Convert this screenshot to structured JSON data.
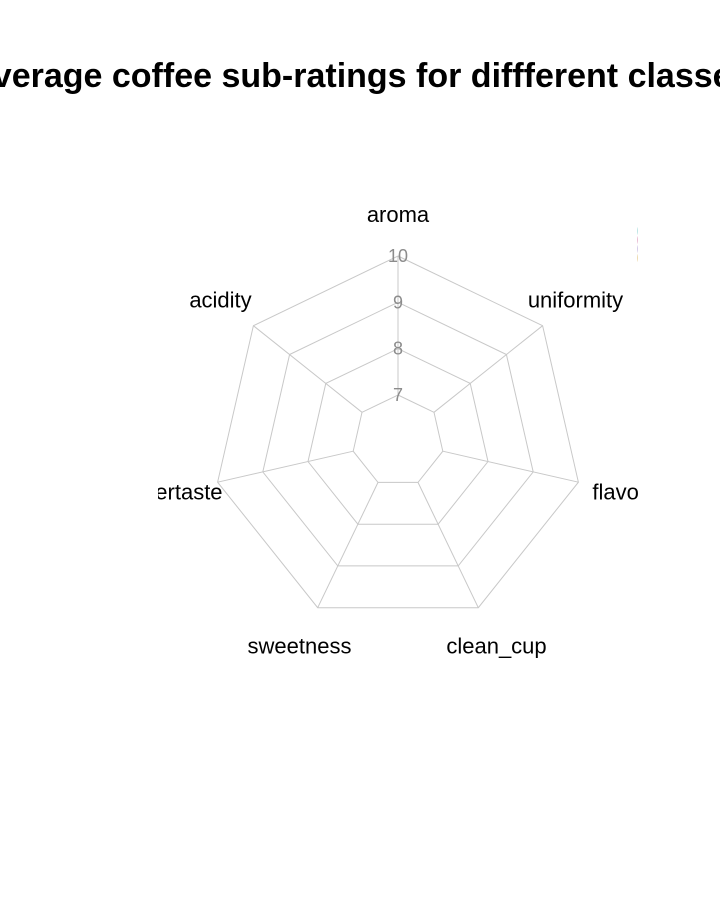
{
  "chart_data": {
    "type": "radar",
    "title": "Average coffee sub-ratings for diffferent classes",
    "axes": [
      "aroma",
      "uniformity",
      "flavor",
      "clean_cup",
      "sweetness",
      "aftertaste",
      "acidity"
    ],
    "rlim": [
      7,
      10
    ],
    "ring_ticks": [
      7,
      8,
      9,
      10
    ],
    "grid": true,
    "grid_color": "#c8c8c8",
    "legend_placement": "top-right",
    "legend_marker_colors": [
      "#8fd3d3",
      "#d98fb5",
      "#b8a9d9",
      "#e0c27a"
    ],
    "series": []
  }
}
